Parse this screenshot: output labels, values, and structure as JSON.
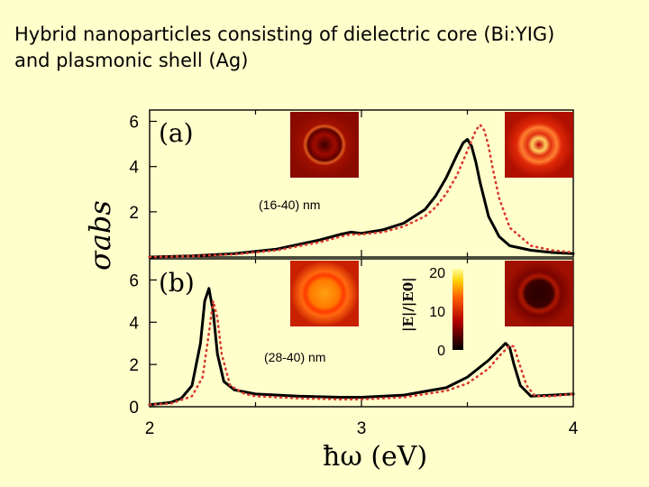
{
  "slide": {
    "title_line1": "Hybrid nanoparticles consisting of dielectric core (Bi:YIG)",
    "title_line2": "and plasmonic shell (Ag)"
  },
  "chart_data": [
    {
      "type": "line",
      "panel_label": "(a)",
      "annotation": "(16-40) nm",
      "xlim": [
        2,
        4
      ],
      "ylim": [
        0,
        6.5
      ],
      "yticks": [
        2,
        4,
        6
      ],
      "grid": false,
      "colors": {
        "solid": "#000000",
        "dotted": "#d93a2e"
      },
      "series": [
        {
          "style": "solid",
          "x": [
            2.0,
            2.2,
            2.4,
            2.6,
            2.8,
            2.9,
            2.95,
            3.0,
            3.1,
            3.2,
            3.3,
            3.35,
            3.4,
            3.45,
            3.48,
            3.5,
            3.52,
            3.54,
            3.56,
            3.6,
            3.65,
            3.7,
            3.8,
            3.9,
            4.0
          ],
          "y": [
            0.0,
            0.05,
            0.15,
            0.35,
            0.75,
            1.0,
            1.1,
            1.05,
            1.2,
            1.5,
            2.1,
            2.7,
            3.5,
            4.5,
            5.05,
            5.2,
            4.9,
            4.2,
            3.3,
            1.8,
            0.9,
            0.5,
            0.3,
            0.2,
            0.15
          ]
        },
        {
          "style": "dotted",
          "x": [
            2.0,
            2.2,
            2.4,
            2.6,
            2.8,
            2.9,
            2.95,
            3.0,
            3.1,
            3.2,
            3.3,
            3.35,
            3.4,
            3.45,
            3.5,
            3.54,
            3.56,
            3.58,
            3.6,
            3.62,
            3.65,
            3.7,
            3.8,
            3.9,
            4.0
          ],
          "y": [
            0.0,
            0.04,
            0.12,
            0.3,
            0.65,
            0.9,
            1.0,
            1.0,
            1.1,
            1.35,
            1.8,
            2.2,
            2.8,
            3.6,
            4.7,
            5.6,
            5.85,
            5.6,
            4.9,
            3.9,
            2.6,
            1.3,
            0.5,
            0.3,
            0.2
          ]
        }
      ],
      "inset_images": [
        "field-map-core-ring",
        "field-map-shell-glow"
      ]
    },
    {
      "type": "line",
      "panel_label": "(b)",
      "annotation": "(28-40) nm",
      "xlim": [
        2,
        4
      ],
      "ylim": [
        0,
        7
      ],
      "yticks": [
        0,
        2,
        4,
        6
      ],
      "xticks": [
        2,
        3,
        4
      ],
      "xlabel": "ħω (eV)",
      "grid": false,
      "colors": {
        "solid": "#000000",
        "dotted": "#d93a2e"
      },
      "series": [
        {
          "style": "solid",
          "x": [
            2.0,
            2.1,
            2.15,
            2.2,
            2.24,
            2.26,
            2.28,
            2.3,
            2.32,
            2.35,
            2.4,
            2.5,
            2.7,
            2.9,
            3.0,
            3.2,
            3.4,
            3.5,
            3.6,
            3.65,
            3.68,
            3.7,
            3.72,
            3.75,
            3.8,
            3.9,
            4.0
          ],
          "y": [
            0.1,
            0.2,
            0.4,
            1.0,
            3.0,
            5.0,
            5.6,
            4.5,
            2.5,
            1.2,
            0.8,
            0.6,
            0.5,
            0.45,
            0.45,
            0.55,
            0.9,
            1.4,
            2.2,
            2.7,
            3.0,
            2.8,
            2.0,
            1.0,
            0.5,
            0.55,
            0.6
          ]
        },
        {
          "style": "dotted",
          "x": [
            2.0,
            2.1,
            2.2,
            2.25,
            2.28,
            2.3,
            2.32,
            2.34,
            2.38,
            2.45,
            2.5,
            2.7,
            2.9,
            3.0,
            3.2,
            3.4,
            3.5,
            3.6,
            3.65,
            3.7,
            3.72,
            3.74,
            3.78,
            3.82,
            3.9,
            4.0
          ],
          "y": [
            0.1,
            0.15,
            0.5,
            1.4,
            3.5,
            5.0,
            4.2,
            2.5,
            1.0,
            0.6,
            0.5,
            0.4,
            0.35,
            0.35,
            0.45,
            0.75,
            1.1,
            1.8,
            2.4,
            2.9,
            2.85,
            2.2,
            1.0,
            0.5,
            0.5,
            0.6
          ]
        }
      ],
      "inset_images": [
        "field-map-bright-core",
        "field-map-dark-core"
      ],
      "colorbar": {
        "label": "|E|/|E0|",
        "ticks": [
          0,
          10,
          20
        ]
      }
    }
  ],
  "shared_axis": {
    "ylabel": "σabs"
  }
}
